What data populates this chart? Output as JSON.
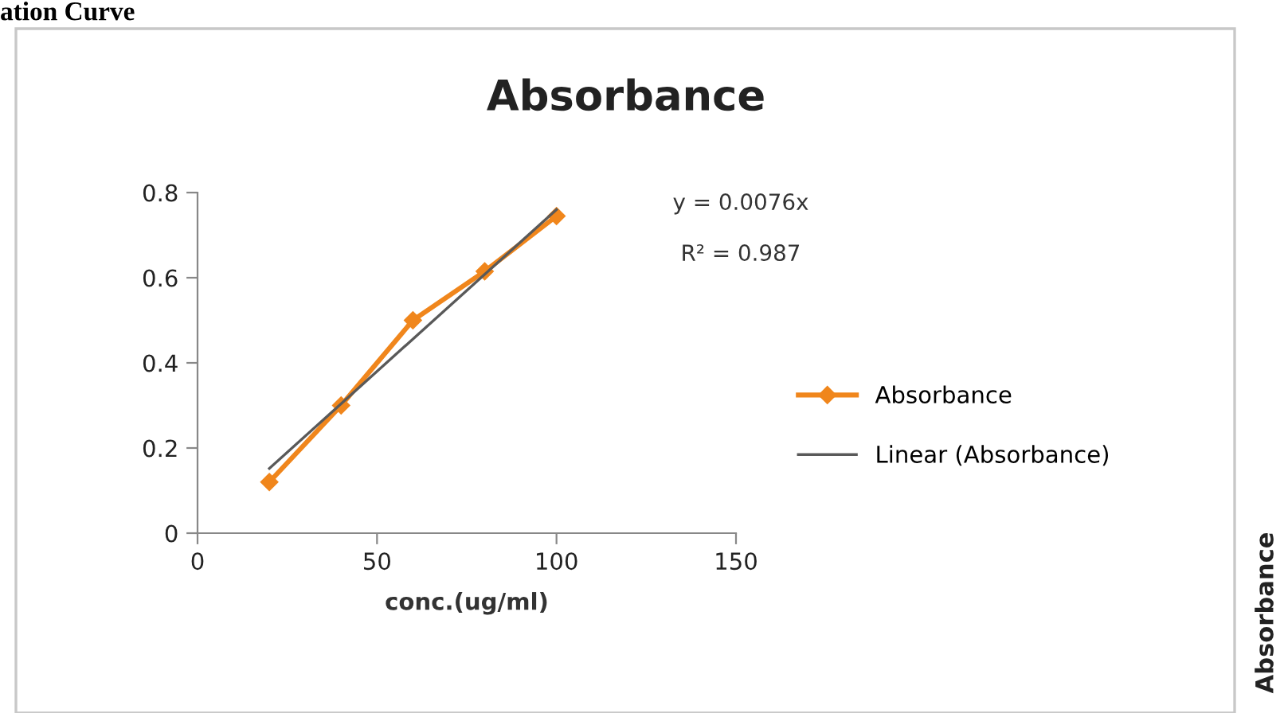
{
  "chart_data": {
    "type": "line",
    "title": "Absorbance",
    "xlabel": "conc.(ug/ml)",
    "xlim": [
      0,
      150
    ],
    "xticks": [
      0,
      50,
      100,
      150
    ],
    "ylim": [
      0,
      0.8
    ],
    "yticks": [
      0,
      0.2,
      0.4,
      0.6,
      0.8
    ],
    "series": [
      {
        "name": "Absorbance",
        "color": "#f0861c",
        "x": [
          20,
          40,
          60,
          80,
          100
        ],
        "values": [
          0.12,
          0.3,
          0.5,
          0.615,
          0.745
        ],
        "marker": "diamond"
      },
      {
        "name": "Linear (Absorbance)",
        "color": "#595959",
        "x": [
          20,
          100
        ],
        "values": [
          0.152,
          0.76
        ],
        "marker": "none"
      }
    ],
    "annotations": [
      "y = 0.0076x",
      "R² = 0.987",
      "ation Curve",
      "Absorbance"
    ],
    "legend": "right",
    "grid": false,
    "line_style": "solid"
  }
}
